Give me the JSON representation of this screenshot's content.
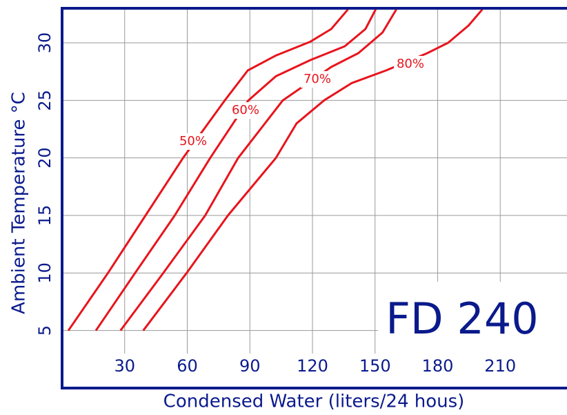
{
  "chart_data": {
    "type": "line",
    "title": "FD 240",
    "x_label": "Condensed Water (liters/24 hous)",
    "y_label": "Ambient Temperature °C",
    "xlim": [
      0,
      242
    ],
    "ylim": [
      0,
      33
    ],
    "xticks": [
      30,
      60,
      90,
      120,
      150,
      180,
      210
    ],
    "yticks": [
      5,
      10,
      15,
      20,
      25,
      30
    ],
    "grid": true,
    "series": [
      {
        "name": "50%",
        "color": "#e8141c",
        "x": [
          3,
          22,
          40,
          58,
          78,
          89,
          102.5,
          119,
          129,
          137
        ],
        "values": [
          5,
          10,
          15,
          20,
          25,
          27.6,
          28.9,
          30.1,
          31.2,
          32.9
        ]
      },
      {
        "name": "60%",
        "color": "#e8141c",
        "x": [
          16.2,
          35,
          54,
          71,
          89.3,
          102.5,
          119,
          135.5,
          145.4,
          150.3
        ],
        "values": [
          5,
          10,
          15,
          20,
          25,
          27.1,
          28.5,
          29.7,
          31.2,
          32.9
        ]
      },
      {
        "name": "70%",
        "color": "#e8141c",
        "x": [
          28,
          48.5,
          68.6,
          84.4,
          105.8,
          129,
          142,
          153.6,
          160.2
        ],
        "values": [
          5,
          10,
          15,
          20,
          25,
          27.9,
          29.1,
          30.9,
          32.9
        ]
      },
      {
        "name": "80%",
        "color": "#e8141c",
        "x": [
          38.9,
          59.7,
          79.5,
          102.5,
          112.4,
          125.6,
          138.8,
          155.3,
          175,
          185,
          194.8,
          201.4
        ],
        "values": [
          5,
          10,
          15,
          20,
          23,
          25,
          26.5,
          27.6,
          29.1,
          30,
          31.5,
          32.9
        ]
      }
    ]
  }
}
